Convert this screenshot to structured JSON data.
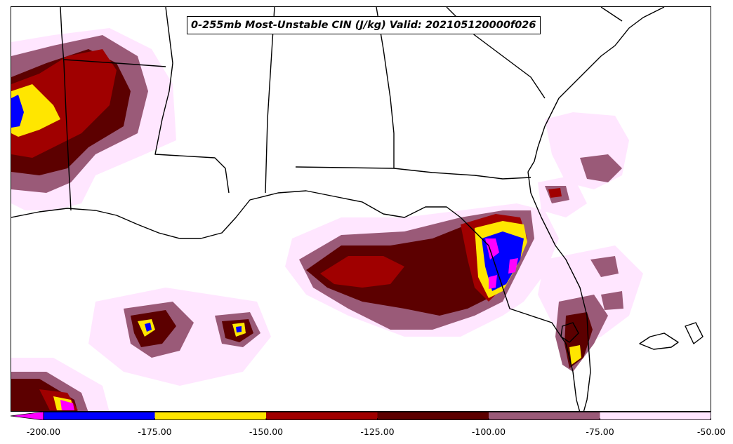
{
  "title": "0-255mb Most-Unstable CIN (J/kg) Valid: 202105120000f026",
  "colors": {
    "under": "#ff00ff",
    "bins": [
      "#0000ff",
      "#ffe600",
      "#a00000",
      "#5c0000",
      "#9a5a78",
      "#ffe6ff"
    ],
    "coast": "#000000"
  },
  "colorbar": {
    "levels": [
      -200,
      -175,
      -150,
      -125,
      -100,
      -75,
      -50
    ],
    "tick_labels": [
      "-200.00",
      "-175.00",
      "-150.00",
      "-125.00",
      "-100.00",
      "-75.00",
      "-50.00"
    ]
  }
}
